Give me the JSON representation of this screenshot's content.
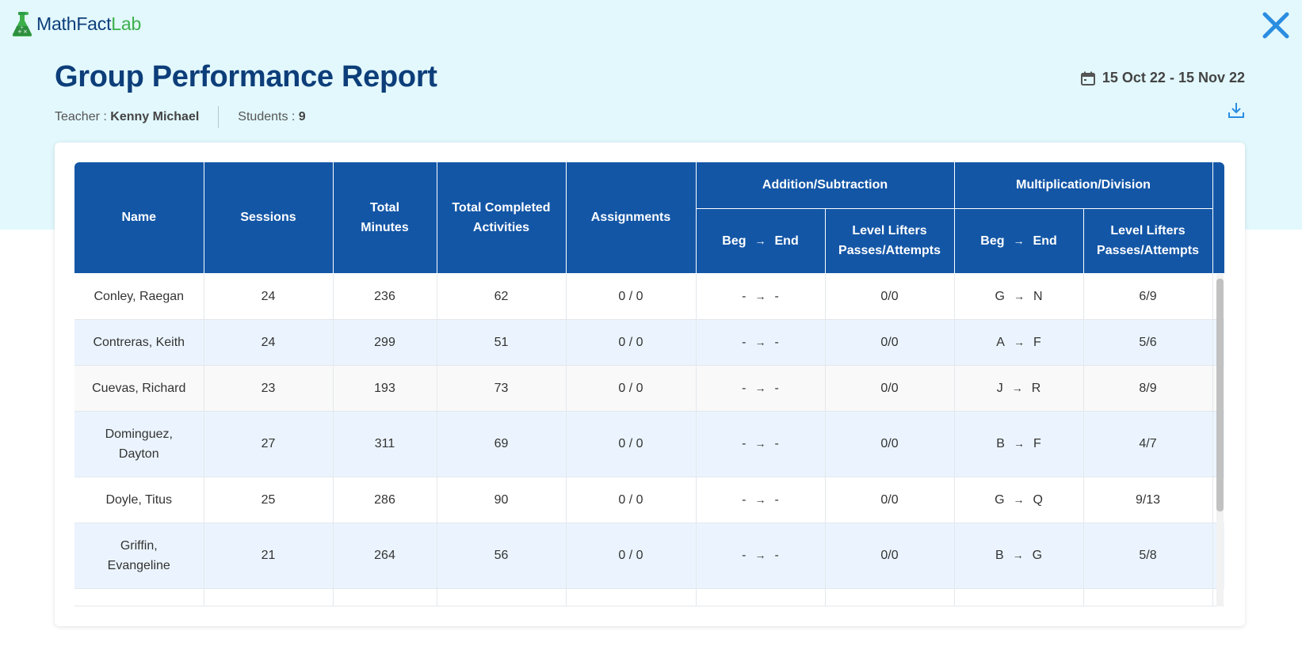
{
  "app": {
    "logo_part1": "MathFact",
    "logo_part2": "Lab",
    "accent_color": "#0d3e7a",
    "lab_color": "#3db04b"
  },
  "header": {
    "title": "Group Performance Report",
    "teacher_label": "Teacher : ",
    "teacher_name": "Kenny Michael",
    "students_label": "Students : ",
    "students_count": "9",
    "date_range": "15 Oct 22 - 15 Nov 22"
  },
  "table": {
    "columns": {
      "name": "Name",
      "sessions": "Sessions",
      "total_minutes_1": "Total",
      "total_minutes_2": "Minutes",
      "total_completed_1": "Total Completed",
      "total_completed_2": "Activities",
      "assignments": "Assignments",
      "add_sub": "Addition/Subtraction",
      "mul_div": "Multiplication/Division",
      "beg": "Beg",
      "end": "End",
      "level_lifters_1": "Level Lifters",
      "level_lifters_2": "Passes/Attempts"
    },
    "rows": [
      {
        "name": "Conley, Raegan",
        "sessions": "24",
        "minutes": "236",
        "activities": "62",
        "assignments": "0 / 0",
        "as_beg": "-",
        "as_end": "-",
        "as_ll": "0/0",
        "md_beg": "G",
        "md_end": "N",
        "md_ll": "6/9"
      },
      {
        "name": "Contreras, Keith",
        "sessions": "24",
        "minutes": "299",
        "activities": "51",
        "assignments": "0 / 0",
        "as_beg": "-",
        "as_end": "-",
        "as_ll": "0/0",
        "md_beg": "A",
        "md_end": "F",
        "md_ll": "5/6"
      },
      {
        "name": "Cuevas, Richard",
        "sessions": "23",
        "minutes": "193",
        "activities": "73",
        "assignments": "0 / 0",
        "as_beg": "-",
        "as_end": "-",
        "as_ll": "0/0",
        "md_beg": "J",
        "md_end": "R",
        "md_ll": "8/9"
      },
      {
        "name": "Dominguez,",
        "name2": "Dayton",
        "sessions": "27",
        "minutes": "311",
        "activities": "69",
        "assignments": "0 / 0",
        "as_beg": "-",
        "as_end": "-",
        "as_ll": "0/0",
        "md_beg": "B",
        "md_end": "F",
        "md_ll": "4/7"
      },
      {
        "name": "Doyle, Titus",
        "sessions": "25",
        "minutes": "286",
        "activities": "90",
        "assignments": "0 / 0",
        "as_beg": "-",
        "as_end": "-",
        "as_ll": "0/0",
        "md_beg": "G",
        "md_end": "Q",
        "md_ll": "9/13"
      },
      {
        "name": "Griffin,",
        "name2": "Evangeline",
        "sessions": "21",
        "minutes": "264",
        "activities": "56",
        "assignments": "0 / 0",
        "as_beg": "-",
        "as_end": "-",
        "as_ll": "0/0",
        "md_beg": "B",
        "md_end": "G",
        "md_ll": "5/8"
      }
    ]
  },
  "icons": {
    "logo": "flask-logo-icon",
    "close": "close-icon",
    "calendar": "calendar-icon",
    "download": "download-icon",
    "arrow": "arrow-right-icon"
  }
}
